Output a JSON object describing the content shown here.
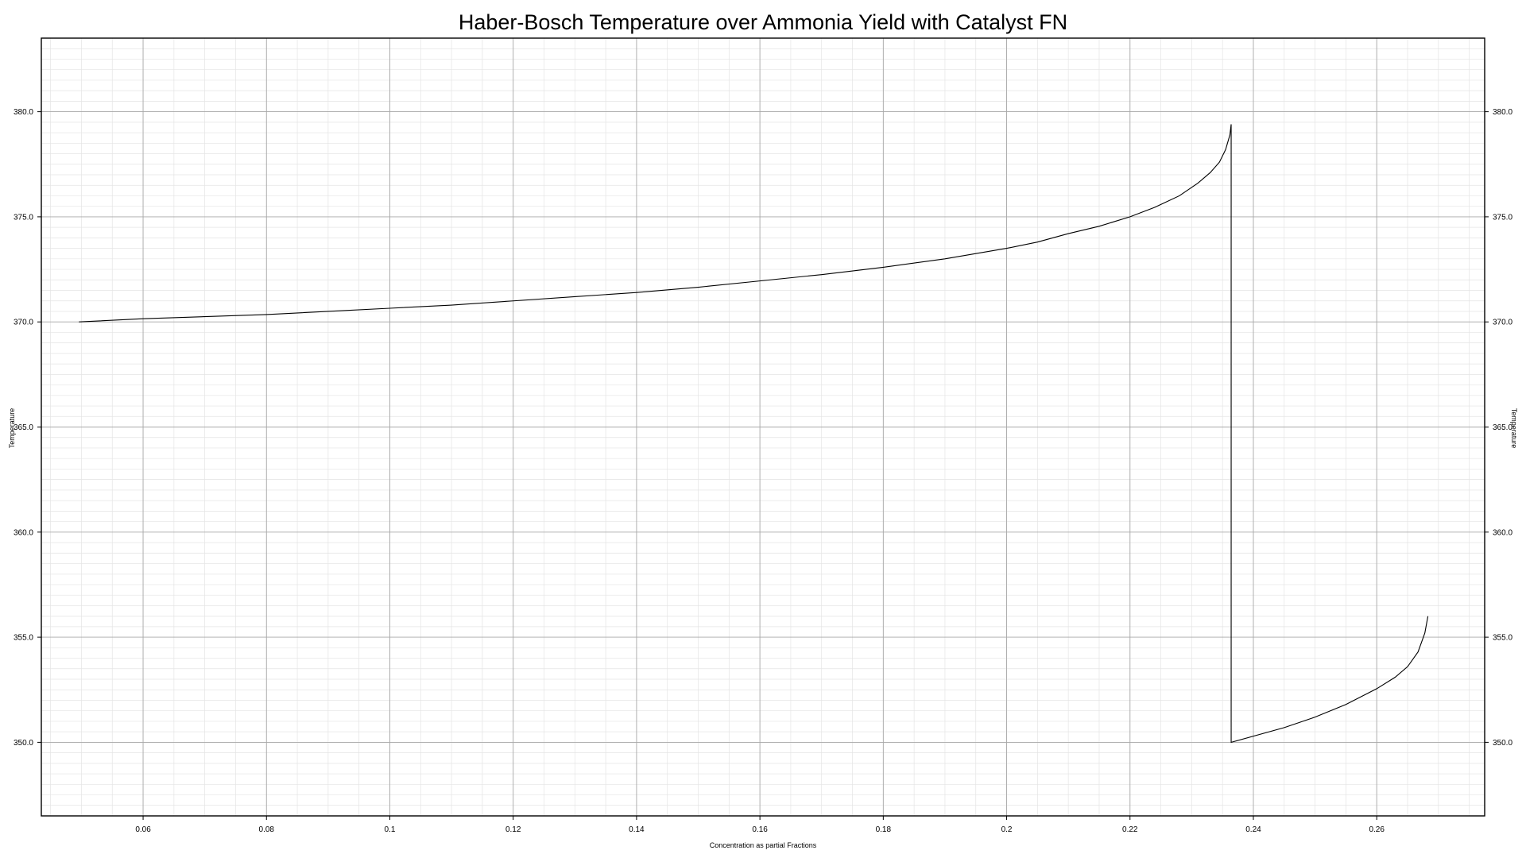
{
  "chart_data": {
    "type": "line",
    "title": "Haber-Bosch Temperature over Ammonia Yield with Catalyst FN",
    "xlabel": "Concentration as partial Fractions",
    "ylabel": "Temperature",
    "ylabel_right": "Temperature",
    "xlim": [
      0.0435,
      0.2775
    ],
    "ylim": [
      346.5,
      383.5
    ],
    "x_ticks": [
      0.06,
      0.08,
      0.1,
      0.12,
      0.14,
      0.16,
      0.18,
      0.2,
      0.22,
      0.24,
      0.26
    ],
    "x_tick_labels": [
      "0.06",
      "0.08",
      "0.1",
      "0.12",
      "0.14",
      "0.16",
      "0.18",
      "0.2",
      "0.22",
      "0.24",
      "0.26"
    ],
    "y_ticks": [
      350,
      355,
      360,
      365,
      370,
      375,
      380
    ],
    "y_tick_labels": [
      "350.0",
      "355.0",
      "360.0",
      "365.0",
      "370.0",
      "375.0",
      "380.0"
    ],
    "grid": true,
    "minor_grid": true,
    "legend": "none",
    "line_color": "#000000",
    "series": [
      {
        "x": [
          0.0496,
          0.06,
          0.07,
          0.08,
          0.09,
          0.1,
          0.11,
          0.12,
          0.13,
          0.14,
          0.15,
          0.16,
          0.17,
          0.18,
          0.19,
          0.2,
          0.205,
          0.21,
          0.215,
          0.22,
          0.224,
          0.228,
          0.231,
          0.233,
          0.2345,
          0.2355,
          0.2362,
          0.2364,
          0.2364,
          0.2364,
          0.245,
          0.25,
          0.255,
          0.26,
          0.263,
          0.265,
          0.2667,
          0.2678,
          0.2683
        ],
        "y": [
          370.0,
          370.15,
          370.25,
          370.35,
          370.5,
          370.65,
          370.8,
          371.0,
          371.2,
          371.4,
          371.65,
          371.95,
          372.25,
          372.6,
          373.0,
          373.5,
          373.8,
          374.2,
          374.55,
          375.0,
          375.45,
          376.0,
          376.6,
          377.1,
          377.6,
          378.2,
          378.9,
          379.4,
          350.0,
          350.0,
          350.7,
          351.2,
          351.8,
          352.55,
          353.1,
          353.6,
          354.3,
          355.2,
          356.0
        ]
      }
    ]
  }
}
